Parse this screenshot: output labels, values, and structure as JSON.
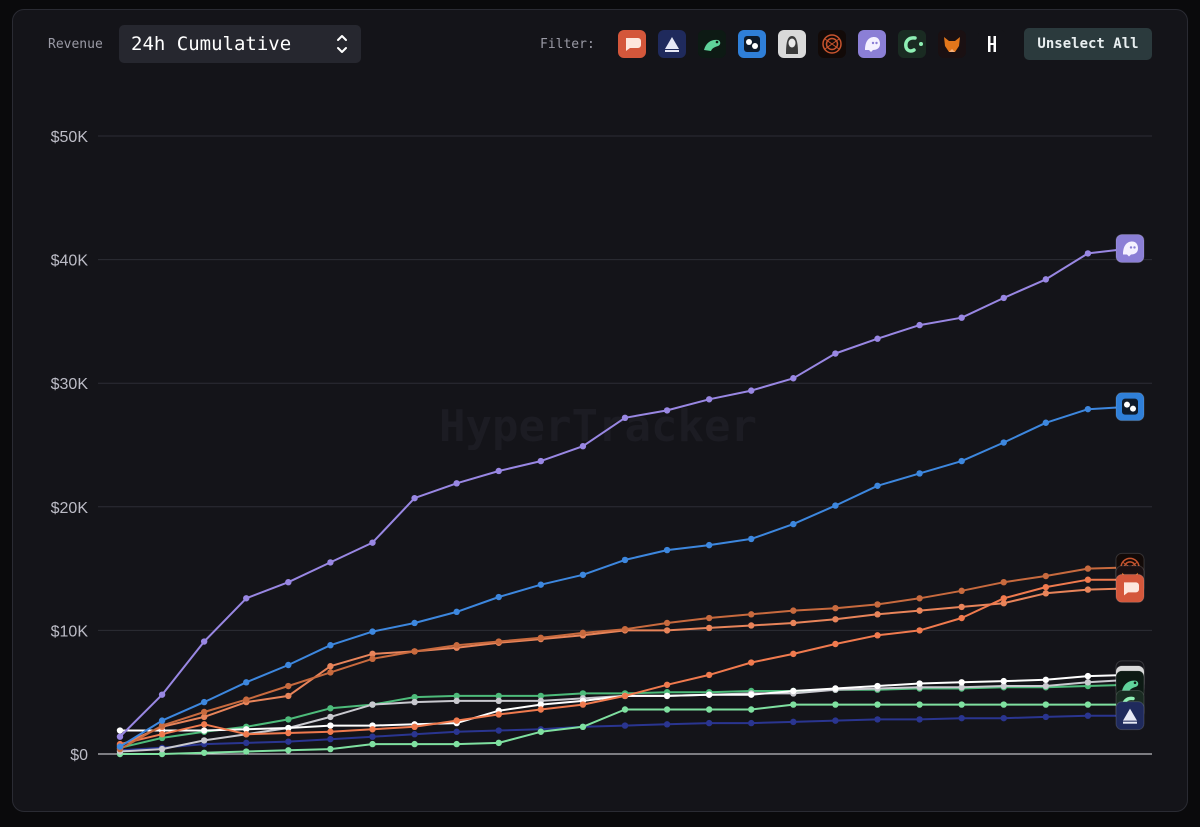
{
  "toolbar": {
    "revenue_label": "Revenue",
    "mode_value": "24h Cumulative",
    "filter_label": "Filter:",
    "unselect_label": "Unselect All"
  },
  "filters": [
    {
      "icon": "chat-bubble-icon",
      "bg": "#d4573b"
    },
    {
      "icon": "triangle-icon",
      "bg": "#1f2a5c"
    },
    {
      "icon": "frog-icon",
      "bg": "#0d1a14"
    },
    {
      "icon": "dots-icon",
      "bg": "#2f7fd8"
    },
    {
      "icon": "portrait-icon",
      "bg": "#d9d9d9"
    },
    {
      "icon": "swirl-icon",
      "bg": "#120a08"
    },
    {
      "icon": "ghost-icon",
      "bg": "#8b7fd6"
    },
    {
      "icon": "c-logo-icon",
      "bg": "#1a2b22"
    },
    {
      "icon": "fox-icon",
      "bg": "#1a1012"
    },
    {
      "icon": "h-logo-icon",
      "bg": "#141419"
    }
  ],
  "watermark": {
    "title": "HyperTracker"
  },
  "chart_data": {
    "type": "line",
    "ylim": [
      0,
      50000
    ],
    "yticks": [
      0,
      10000,
      20000,
      30000,
      40000,
      50000
    ],
    "ytick_labels": [
      "$0",
      "$10K",
      "$20K",
      "$30K",
      "$40K",
      "$50K"
    ],
    "x": [
      0,
      1,
      2,
      3,
      4,
      5,
      6,
      7,
      8,
      9,
      10,
      11,
      12,
      13,
      14,
      15,
      16,
      17,
      18,
      19,
      20,
      21,
      22,
      23,
      24
    ],
    "grid": true,
    "series": [
      {
        "icon": "ghost-icon",
        "color": "#9987e3",
        "values": [
          1400,
          4800,
          9100,
          12600,
          13900,
          15500,
          17100,
          20700,
          21900,
          22900,
          23700,
          24900,
          27200,
          27800,
          28700,
          29400,
          30400,
          32400,
          33600,
          34700,
          35300,
          36900,
          38400,
          40500,
          40900
        ]
      },
      {
        "icon": "dots-icon",
        "color": "#3d87de",
        "values": [
          600,
          2700,
          4200,
          5800,
          7200,
          8800,
          9900,
          10600,
          11500,
          12700,
          13700,
          14500,
          15700,
          16500,
          16900,
          17400,
          18600,
          20100,
          21700,
          22700,
          23700,
          25200,
          26800,
          27900,
          28100
        ]
      },
      {
        "icon": "swirl-icon",
        "color": "#c86a3e",
        "values": [
          400,
          2300,
          3400,
          4400,
          5500,
          6600,
          7700,
          8300,
          8800,
          9100,
          9400,
          9800,
          10100,
          10600,
          11000,
          11300,
          11600,
          11800,
          12100,
          12600,
          13200,
          13900,
          14400,
          15000,
          15100
        ]
      },
      {
        "icon": "fox-icon",
        "color": "#f07a4e",
        "values": [
          800,
          1600,
          2400,
          1600,
          1700,
          1800,
          2000,
          2200,
          2700,
          3200,
          3600,
          4000,
          4700,
          5600,
          6400,
          7400,
          8100,
          8900,
          9600,
          10000,
          11000,
          12600,
          13500,
          14100,
          14100
        ]
      },
      {
        "icon": "chat-bubble-icon",
        "color": "#e8845a",
        "values": [
          700,
          2200,
          3000,
          4200,
          4700,
          7100,
          8100,
          8300,
          8600,
          9000,
          9300,
          9600,
          10000,
          10000,
          10200,
          10400,
          10600,
          10900,
          11300,
          11600,
          11900,
          12200,
          13000,
          13300,
          13400
        ]
      },
      {
        "icon": "h-logo-icon",
        "color": "#ffffff",
        "values": [
          1900,
          1900,
          1900,
          2000,
          2100,
          2300,
          2300,
          2400,
          2500,
          3500,
          4000,
          4300,
          4700,
          4700,
          4800,
          4800,
          5100,
          5300,
          5500,
          5700,
          5800,
          5900,
          6000,
          6300,
          6400
        ]
      },
      {
        "icon": "portrait-icon",
        "color": "#c9c9cf",
        "values": [
          200,
          400,
          1100,
          1600,
          2100,
          3000,
          4000,
          4200,
          4300,
          4300,
          4300,
          4500,
          4700,
          4700,
          4800,
          4900,
          4900,
          5200,
          5300,
          5400,
          5400,
          5500,
          5500,
          5800,
          6000
        ]
      },
      {
        "icon": "frog-icon",
        "color": "#4dbb7a",
        "values": [
          500,
          1300,
          1800,
          2200,
          2800,
          3700,
          4000,
          4600,
          4700,
          4700,
          4700,
          4900,
          4900,
          5000,
          5000,
          5100,
          5100,
          5200,
          5200,
          5300,
          5300,
          5400,
          5400,
          5500,
          5600
        ]
      },
      {
        "icon": "c-logo-icon",
        "color": "#7fe0a0",
        "values": [
          0,
          0,
          100,
          200,
          300,
          400,
          800,
          800,
          800,
          900,
          1800,
          2200,
          3600,
          3600,
          3600,
          3600,
          4000,
          4000,
          4000,
          4000,
          4000,
          4000,
          4000,
          4000,
          4000
        ]
      },
      {
        "icon": "triangle-icon",
        "color": "#2a3590",
        "values": [
          300,
          500,
          800,
          900,
          1000,
          1200,
          1400,
          1600,
          1800,
          1900,
          2000,
          2200,
          2300,
          2400,
          2500,
          2500,
          2600,
          2700,
          2800,
          2800,
          2900,
          2900,
          3000,
          3100,
          3100
        ]
      }
    ]
  }
}
